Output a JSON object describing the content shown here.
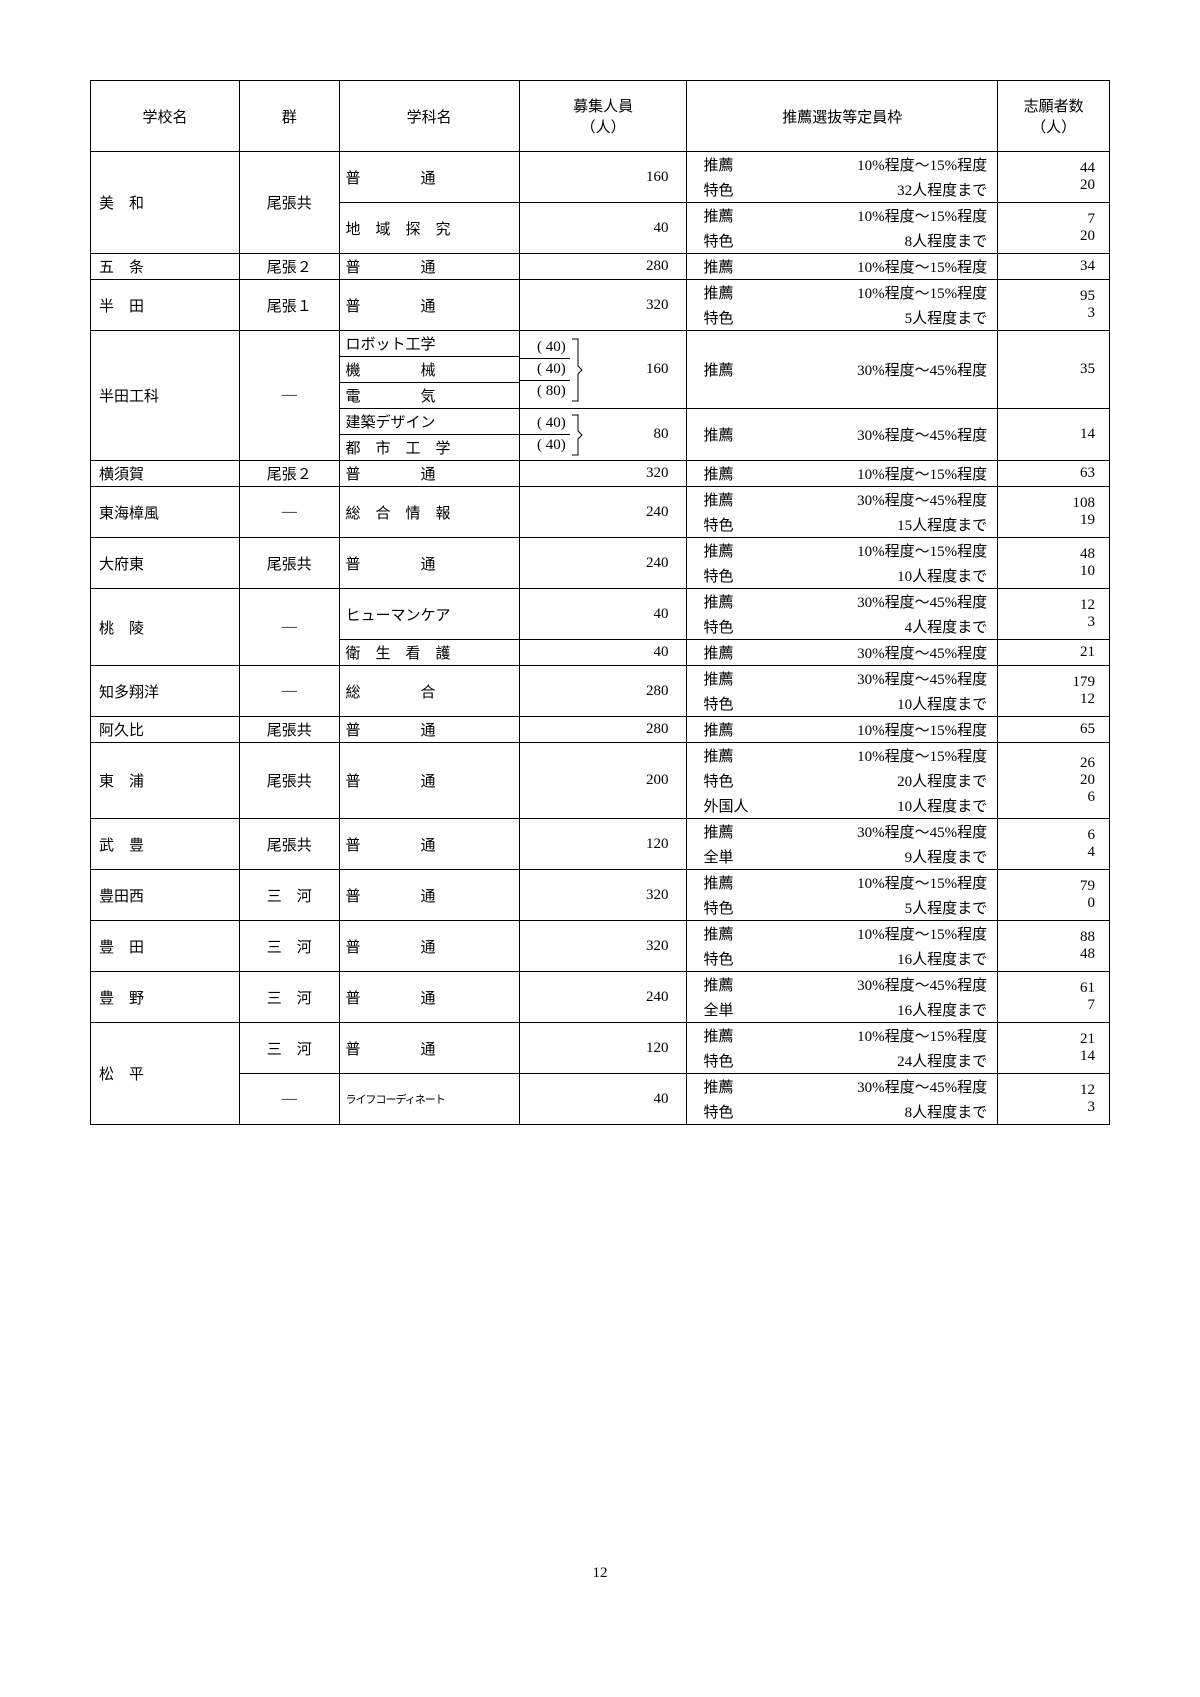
{
  "page_number": "12",
  "columns": {
    "school": "学校名",
    "group": "群",
    "dept": "学科名",
    "capacity": "募集人員\n（人）",
    "quota": "推薦選抜等定員枠",
    "applicants": "志願者数\n（人）"
  },
  "col_widths": {
    "school": "12%",
    "group": "8%",
    "dept": "14.5%",
    "capacity": "13.5%",
    "quota": "25%",
    "applicants": "9%"
  },
  "colors": {
    "border": "#000000",
    "text": "#000000",
    "bg": "#ffffff"
  },
  "rows": [
    {
      "school": "美　和",
      "group": "尾張共",
      "segments": [
        {
          "dept": {
            "name": "普　　　　通",
            "sub": null
          },
          "capacity": {
            "total": "160"
          },
          "quotas": [
            {
              "type": "推薦",
              "val": "10%程度～15%程度"
            },
            {
              "type": "特色",
              "val": "32人程度まで"
            }
          ],
          "apps": [
            "44",
            "20"
          ]
        },
        {
          "dept": {
            "name": "地　域　探　究",
            "sub": null
          },
          "capacity": {
            "total": "40"
          },
          "quotas": [
            {
              "type": "推薦",
              "val": "10%程度～15%程度"
            },
            {
              "type": "特色",
              "val": "8人程度まで"
            }
          ],
          "apps": [
            "7",
            "20"
          ]
        }
      ]
    },
    {
      "school": "五　条",
      "group": "尾張２",
      "segments": [
        {
          "dept": {
            "name": "普　　　　通"
          },
          "capacity": {
            "total": "280"
          },
          "quotas": [
            {
              "type": "推薦",
              "val": "10%程度～15%程度"
            }
          ],
          "apps": [
            "34"
          ]
        }
      ]
    },
    {
      "school": "半　田",
      "group": "尾張１",
      "segments": [
        {
          "dept": {
            "name": "普　　　　通"
          },
          "capacity": {
            "total": "320"
          },
          "quotas": [
            {
              "type": "推薦",
              "val": "10%程度～15%程度"
            },
            {
              "type": "特色",
              "val": "5人程度まで"
            }
          ],
          "apps": [
            "95",
            "3"
          ]
        }
      ]
    },
    {
      "school": "半田工科",
      "group": "―",
      "segments": [
        {
          "dept": {
            "multi": [
              "ロボット工学",
              "機　　　　械",
              "電　　　　気"
            ],
            "subcaps": [
              "( 40)",
              "( 40)",
              "( 80)"
            ]
          },
          "capacity": {
            "total": "160",
            "bracket": true
          },
          "quotas": [
            {
              "type": "推薦",
              "val": "30%程度～45%程度"
            }
          ],
          "apps": [
            "35"
          ]
        },
        {
          "dept": {
            "multi": [
              "建築デザイン",
              "都　市　工　学"
            ],
            "subcaps": [
              "( 40)",
              "( 40)"
            ]
          },
          "capacity": {
            "total": "80",
            "bracket": true
          },
          "quotas": [
            {
              "type": "推薦",
              "val": "30%程度～45%程度"
            }
          ],
          "apps": [
            "14"
          ]
        }
      ]
    },
    {
      "school": "横須賀",
      "group": "尾張２",
      "segments": [
        {
          "dept": {
            "name": "普　　　　通"
          },
          "capacity": {
            "total": "320"
          },
          "quotas": [
            {
              "type": "推薦",
              "val": "10%程度～15%程度"
            }
          ],
          "apps": [
            "63"
          ]
        }
      ]
    },
    {
      "school": "東海樟風",
      "group": "―",
      "segments": [
        {
          "dept": {
            "name": "総　合　情　報"
          },
          "capacity": {
            "total": "240"
          },
          "quotas": [
            {
              "type": "推薦",
              "val": "30%程度～45%程度"
            },
            {
              "type": "特色",
              "val": "15人程度まで"
            }
          ],
          "apps": [
            "108",
            "19"
          ]
        }
      ]
    },
    {
      "school": "大府東",
      "group": "尾張共",
      "segments": [
        {
          "dept": {
            "name": "普　　　　通"
          },
          "capacity": {
            "total": "240"
          },
          "quotas": [
            {
              "type": "推薦",
              "val": "10%程度～15%程度"
            },
            {
              "type": "特色",
              "val": "10人程度まで"
            }
          ],
          "apps": [
            "48",
            "10"
          ]
        }
      ]
    },
    {
      "school": "桃　陵",
      "group": "―",
      "segments": [
        {
          "dept": {
            "name": "ヒューマンケア"
          },
          "capacity": {
            "total": "40"
          },
          "quotas": [
            {
              "type": "推薦",
              "val": "30%程度～45%程度"
            },
            {
              "type": "特色",
              "val": "4人程度まで"
            }
          ],
          "apps": [
            "12",
            "3"
          ]
        },
        {
          "dept": {
            "name": "衛　生　看　護"
          },
          "capacity": {
            "total": "40"
          },
          "quotas": [
            {
              "type": "推薦",
              "val": "30%程度～45%程度"
            }
          ],
          "apps": [
            "21"
          ]
        }
      ]
    },
    {
      "school": "知多翔洋",
      "group": "―",
      "segments": [
        {
          "dept": {
            "name": "総　　　　合"
          },
          "capacity": {
            "total": "280"
          },
          "quotas": [
            {
              "type": "推薦",
              "val": "30%程度～45%程度"
            },
            {
              "type": "特色",
              "val": "10人程度まで"
            }
          ],
          "apps": [
            "179",
            "12"
          ]
        }
      ]
    },
    {
      "school": "阿久比",
      "group": "尾張共",
      "segments": [
        {
          "dept": {
            "name": "普　　　　通"
          },
          "capacity": {
            "total": "280"
          },
          "quotas": [
            {
              "type": "推薦",
              "val": "10%程度～15%程度"
            }
          ],
          "apps": [
            "65"
          ]
        }
      ]
    },
    {
      "school": "東　浦",
      "group": "尾張共",
      "segments": [
        {
          "dept": {
            "name": "普　　　　通"
          },
          "capacity": {
            "total": "200"
          },
          "quotas": [
            {
              "type": "推薦",
              "val": "10%程度～15%程度"
            },
            {
              "type": "特色",
              "val": "20人程度まで"
            },
            {
              "type": "外国人",
              "val": "10人程度まで"
            }
          ],
          "apps": [
            "26",
            "20",
            "6"
          ]
        }
      ]
    },
    {
      "school": "武　豊",
      "group": "尾張共",
      "segments": [
        {
          "dept": {
            "name": "普　　　　通"
          },
          "capacity": {
            "total": "120"
          },
          "quotas": [
            {
              "type": "推薦",
              "val": "30%程度～45%程度"
            },
            {
              "type": "全単",
              "val": "9人程度まで"
            }
          ],
          "apps": [
            "6",
            "4"
          ]
        }
      ]
    },
    {
      "school": "豊田西",
      "group": "三　河",
      "segments": [
        {
          "dept": {
            "name": "普　　　　通"
          },
          "capacity": {
            "total": "320"
          },
          "quotas": [
            {
              "type": "推薦",
              "val": "10%程度～15%程度"
            },
            {
              "type": "特色",
              "val": "5人程度まで"
            }
          ],
          "apps": [
            "79",
            "0"
          ]
        }
      ]
    },
    {
      "school": "豊　田",
      "group": "三　河",
      "segments": [
        {
          "dept": {
            "name": "普　　　　通"
          },
          "capacity": {
            "total": "320"
          },
          "quotas": [
            {
              "type": "推薦",
              "val": "10%程度～15%程度"
            },
            {
              "type": "特色",
              "val": "16人程度まで"
            }
          ],
          "apps": [
            "88",
            "48"
          ]
        }
      ]
    },
    {
      "school": "豊　野",
      "group": "三　河",
      "segments": [
        {
          "dept": {
            "name": "普　　　　通"
          },
          "capacity": {
            "total": "240"
          },
          "quotas": [
            {
              "type": "推薦",
              "val": "30%程度～45%程度"
            },
            {
              "type": "全単",
              "val": "16人程度まで"
            }
          ],
          "apps": [
            "61",
            "7"
          ]
        }
      ]
    },
    {
      "school": "松　平",
      "group_multi": [
        "三　河",
        "―"
      ],
      "segments": [
        {
          "dept": {
            "name": "普　　　　通"
          },
          "capacity": {
            "total": "120"
          },
          "quotas": [
            {
              "type": "推薦",
              "val": "10%程度～15%程度"
            },
            {
              "type": "特色",
              "val": "24人程度まで"
            }
          ],
          "apps": [
            "21",
            "14"
          ]
        },
        {
          "dept": {
            "name": "ライフコーディネート",
            "small": true
          },
          "capacity": {
            "total": "40"
          },
          "quotas": [
            {
              "type": "推薦",
              "val": "30%程度～45%程度"
            },
            {
              "type": "特色",
              "val": "8人程度まで"
            }
          ],
          "apps": [
            "12",
            "3"
          ]
        }
      ]
    }
  ]
}
